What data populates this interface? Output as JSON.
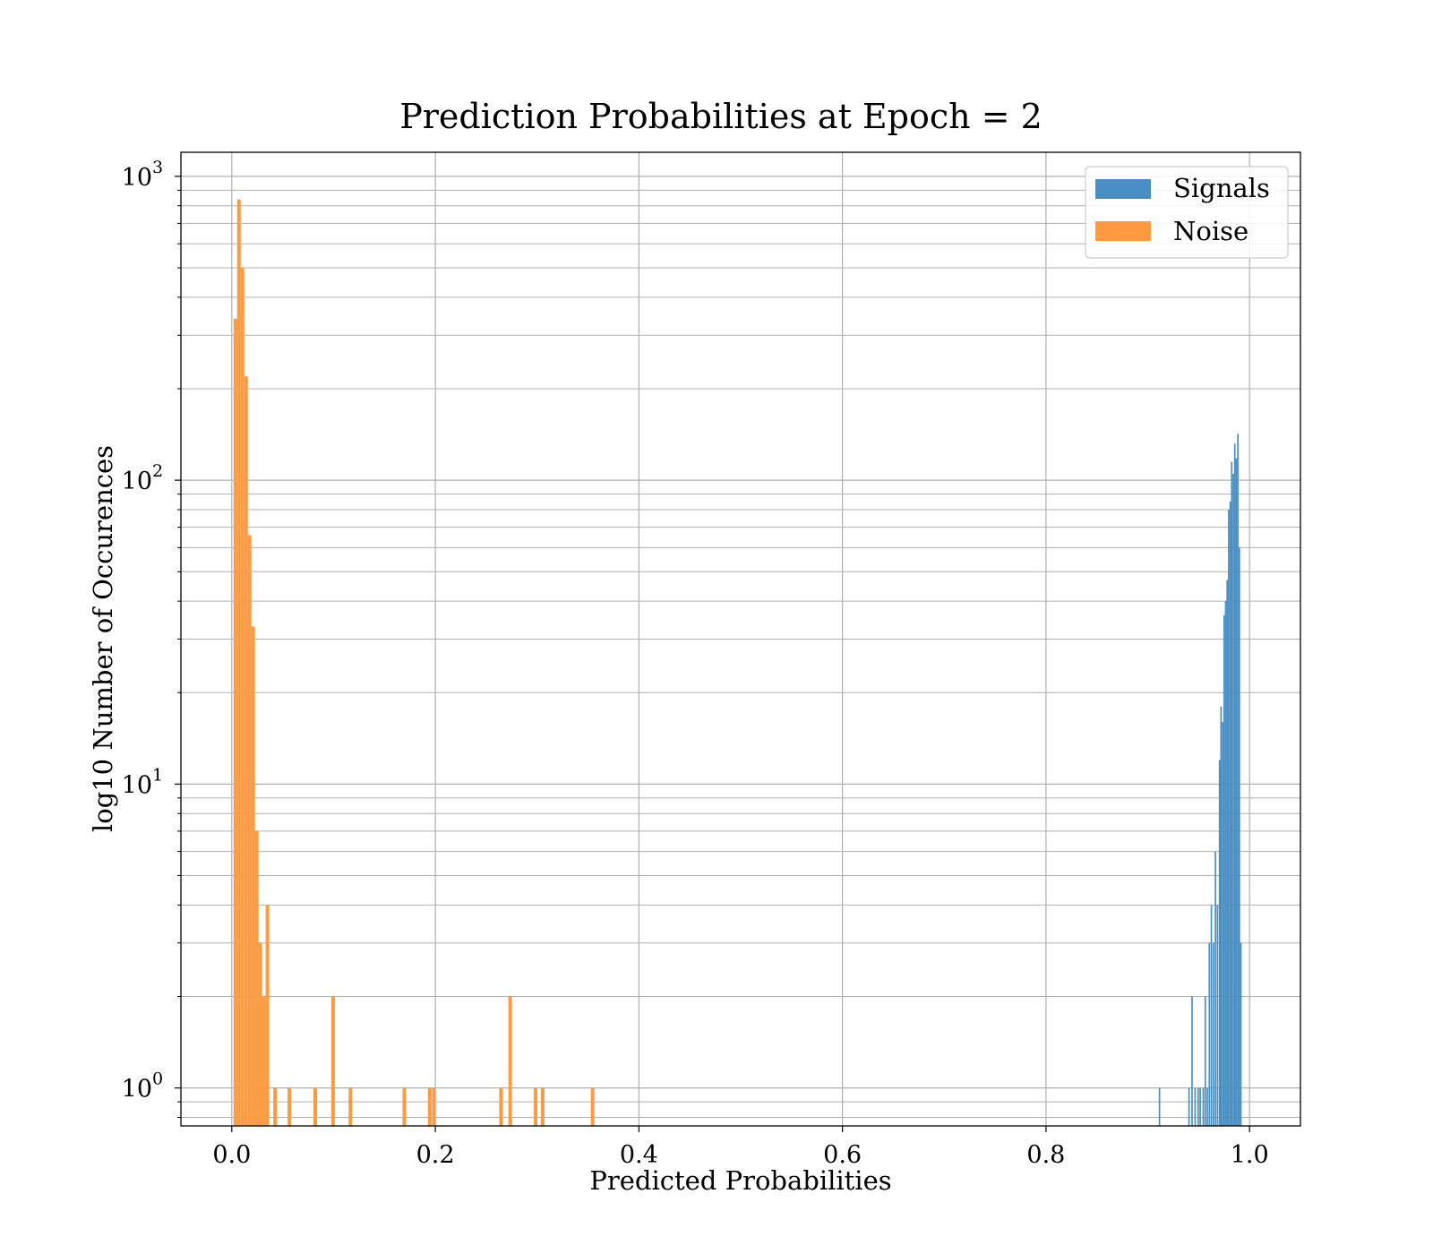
{
  "chart_data": {
    "type": "bar",
    "title": "Prediction Probabilities at Epoch = 2",
    "xlabel": "Predicted Probabilities",
    "ylabel": "log10 Number of Occurences",
    "xlim": [
      -0.05,
      1.05
    ],
    "ylim": [
      0.75,
      1200
    ],
    "yscale": "log",
    "grid": true,
    "legend_position": "top-right",
    "x_ticks": [
      {
        "value": 0.0,
        "label": "0.0"
      },
      {
        "value": 0.2,
        "label": "0.2"
      },
      {
        "value": 0.4,
        "label": "0.4"
      },
      {
        "value": 0.6,
        "label": "0.6"
      },
      {
        "value": 0.8,
        "label": "0.8"
      },
      {
        "value": 1.0,
        "label": "1.0"
      }
    ],
    "y_ticks": [
      {
        "value": 1,
        "base": "10",
        "exp": "0"
      },
      {
        "value": 10,
        "base": "10",
        "exp": "1"
      },
      {
        "value": 100,
        "base": "10",
        "exp": "2"
      },
      {
        "value": 1000,
        "base": "10",
        "exp": "3"
      }
    ],
    "series": [
      {
        "name": "Signals",
        "color": "#4a8fc3",
        "bins": [
          {
            "x": 0.9115,
            "count": 1
          },
          {
            "x": 0.9405,
            "count": 1
          },
          {
            "x": 0.9435,
            "count": 2
          },
          {
            "x": 0.9465,
            "count": 1
          },
          {
            "x": 0.9495,
            "count": 1
          },
          {
            "x": 0.9515,
            "count": 1
          },
          {
            "x": 0.9545,
            "count": 1
          },
          {
            "x": 0.9565,
            "count": 2
          },
          {
            "x": 0.9585,
            "count": 1
          },
          {
            "x": 0.9605,
            "count": 3
          },
          {
            "x": 0.9625,
            "count": 4
          },
          {
            "x": 0.9645,
            "count": 3
          },
          {
            "x": 0.9665,
            "count": 6
          },
          {
            "x": 0.9685,
            "count": 4
          },
          {
            "x": 0.9705,
            "count": 12
          },
          {
            "x": 0.972,
            "count": 18
          },
          {
            "x": 0.9735,
            "count": 16
          },
          {
            "x": 0.975,
            "count": 36
          },
          {
            "x": 0.9765,
            "count": 40
          },
          {
            "x": 0.978,
            "count": 47
          },
          {
            "x": 0.9795,
            "count": 80
          },
          {
            "x": 0.981,
            "count": 85
          },
          {
            "x": 0.9825,
            "count": 115
          },
          {
            "x": 0.984,
            "count": 105
          },
          {
            "x": 0.9855,
            "count": 132
          },
          {
            "x": 0.987,
            "count": 118
          },
          {
            "x": 0.9885,
            "count": 142
          },
          {
            "x": 0.99,
            "count": 60
          },
          {
            "x": 0.9915,
            "count": 3
          }
        ]
      },
      {
        "name": "Noise",
        "color": "#ff9a40",
        "bins": [
          {
            "x": 0.0035,
            "count": 340
          },
          {
            "x": 0.007,
            "count": 840
          },
          {
            "x": 0.0105,
            "count": 500
          },
          {
            "x": 0.014,
            "count": 220
          },
          {
            "x": 0.0175,
            "count": 66
          },
          {
            "x": 0.021,
            "count": 33
          },
          {
            "x": 0.0245,
            "count": 7
          },
          {
            "x": 0.028,
            "count": 3
          },
          {
            "x": 0.0315,
            "count": 2
          },
          {
            "x": 0.035,
            "count": 4
          },
          {
            "x": 0.0425,
            "count": 1
          },
          {
            "x": 0.0565,
            "count": 1
          },
          {
            "x": 0.082,
            "count": 1
          },
          {
            "x": 0.0995,
            "count": 2
          },
          {
            "x": 0.1165,
            "count": 1
          },
          {
            "x": 0.1695,
            "count": 1
          },
          {
            "x": 0.1945,
            "count": 1
          },
          {
            "x": 0.1985,
            "count": 1
          },
          {
            "x": 0.2645,
            "count": 1
          },
          {
            "x": 0.2735,
            "count": 2
          },
          {
            "x": 0.2985,
            "count": 1
          },
          {
            "x": 0.3055,
            "count": 1
          },
          {
            "x": 0.3545,
            "count": 1
          }
        ]
      }
    ]
  }
}
